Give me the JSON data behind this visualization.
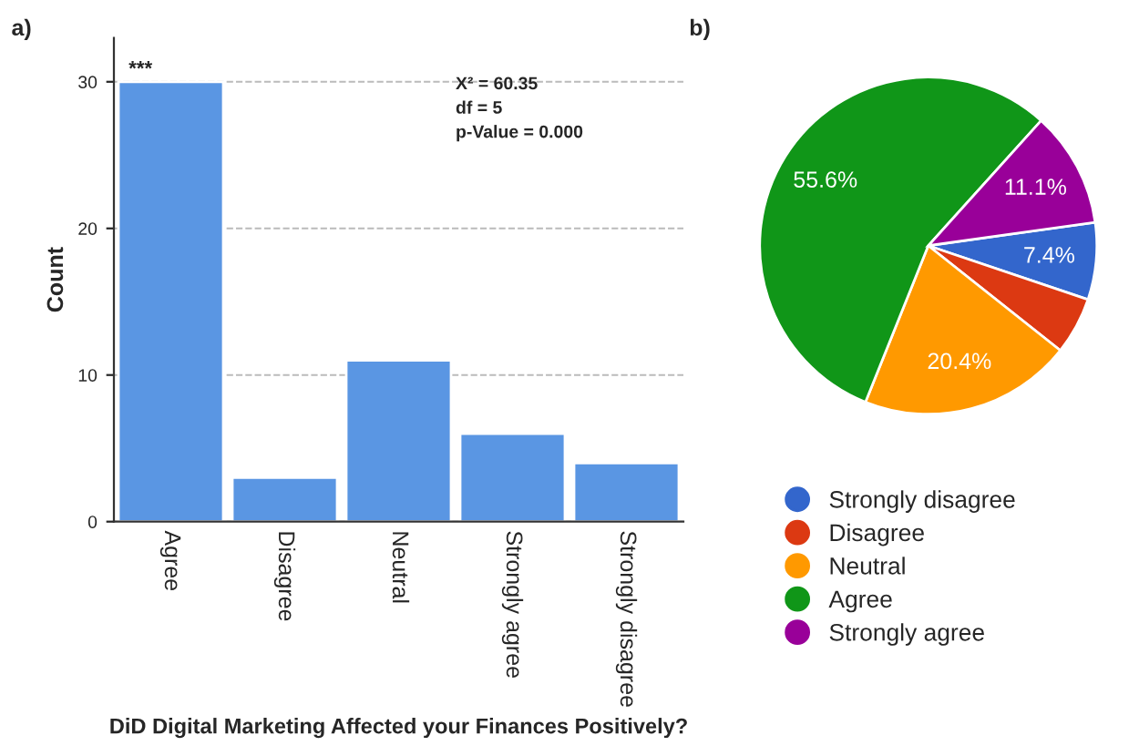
{
  "chart_data": [
    {
      "type": "bar",
      "title": "a)",
      "xlabel": "DiD Digital Marketing Affected your Finances Positively?",
      "ylabel": "Count",
      "categories": [
        "Agree",
        "Disagree",
        "Neutral",
        "Strongly agree",
        "Strongly disagree"
      ],
      "values": [
        30,
        3,
        11,
        6,
        4
      ],
      "color": "#5a96e3",
      "ylim": [
        0,
        33
      ],
      "yticks": [
        0,
        10,
        20,
        30
      ],
      "grid": "y",
      "annotations": [
        {
          "text": "***",
          "x": "Agree",
          "y": 30
        },
        "X² = 60.35",
        "df = 5",
        "p-Value = 0.000"
      ]
    },
    {
      "type": "pie",
      "title": "b)",
      "categories": [
        "Strongly disagree",
        "Disagree",
        "Neutral",
        "Agree",
        "Strongly agree"
      ],
      "values": [
        7.4,
        5.5,
        20.4,
        55.6,
        11.1
      ],
      "value_labels": [
        "7.4%",
        null,
        "20.4%",
        "55.6%",
        "11.1%"
      ],
      "colors": [
        "#3366cc",
        "#dc3912",
        "#ff9900",
        "#109618",
        "#990099"
      ],
      "legend": "bottom"
    }
  ]
}
